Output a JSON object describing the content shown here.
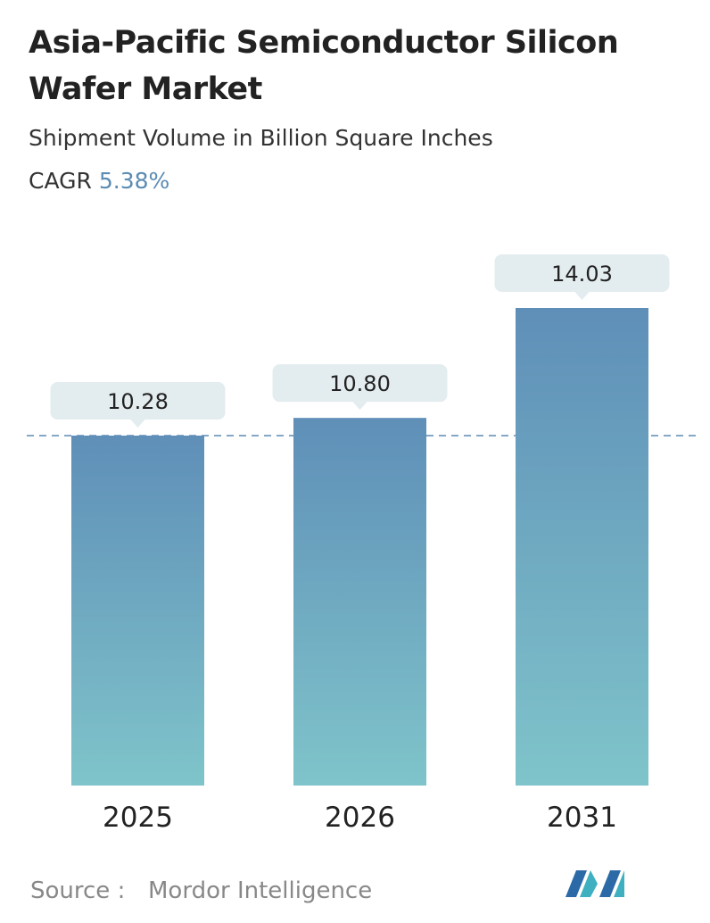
{
  "chart_data": {
    "type": "bar",
    "title": "Asia-Pacific Semiconductor Silicon Wafer Market",
    "subtitle": "Shipment Volume in Billion Square Inches",
    "cagr_label": "CAGR",
    "cagr_value": "5.38%",
    "categories": [
      "2025",
      "2026",
      "2031"
    ],
    "values": [
      10.28,
      10.8,
      14.03
    ],
    "value_labels": [
      "10.28",
      "10.80",
      "14.03"
    ],
    "color_top": "#5f8fb8",
    "color_bottom": "#7fc4ca",
    "source_label": "Source :",
    "source": "Mordor Intelligence"
  }
}
